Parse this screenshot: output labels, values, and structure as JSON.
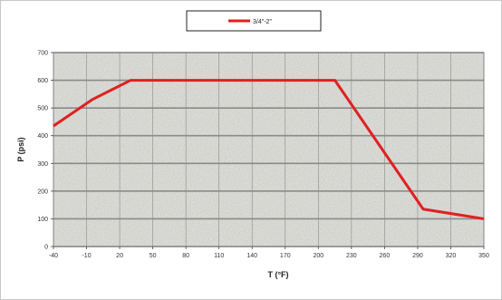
{
  "chart_data": {
    "type": "line",
    "title": "",
    "xlabel": "T (°F)",
    "ylabel": "P (psi)",
    "xlim": [
      -40,
      350
    ],
    "ylim": [
      0,
      700
    ],
    "x_ticks": [
      -40,
      -10,
      20,
      50,
      80,
      110,
      140,
      170,
      200,
      230,
      260,
      290,
      320,
      350
    ],
    "y_ticks": [
      0,
      100,
      200,
      300,
      400,
      500,
      600,
      700
    ],
    "grid": true,
    "legend_position": "top-center",
    "series": [
      {
        "name": "3/4\"-2\"",
        "color": "#e02020",
        "x": [
          -40,
          -5,
          30,
          215,
          295,
          350
        ],
        "y": [
          435,
          530,
          600,
          600,
          135,
          100
        ]
      }
    ]
  },
  "colors": {
    "plot_background": "#e6e6e2",
    "grid": "#8a8a8a",
    "series": "#e02020"
  }
}
